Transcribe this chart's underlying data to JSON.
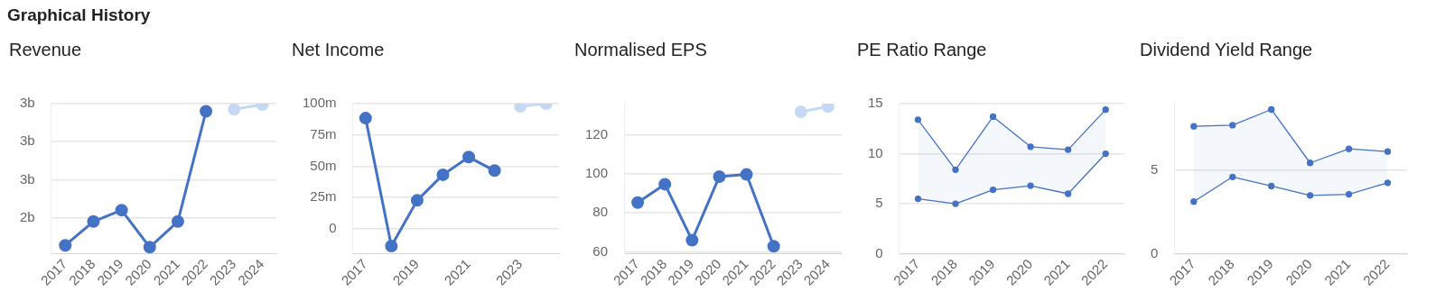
{
  "chart_data": [
    {
      "type": "other",
      "title": "Graphical History"
    },
    {
      "type": "line",
      "title": "Revenue",
      "categories": [
        "2017",
        "2018",
        "2019",
        "2020",
        "2021",
        "2022",
        "2023",
        "2024"
      ],
      "marker": "circle",
      "grid": "y",
      "series": [
        {
          "color": "#4472c4",
          "values": [
            1.91,
            2.16,
            2.28,
            1.89,
            2.16,
            3.32,
            null,
            null
          ]
        },
        {
          "color": "#c5d9f5",
          "values": [
            null,
            null,
            null,
            null,
            null,
            null,
            3.34,
            3.39
          ]
        }
      ],
      "ylim": [
        1.82,
        3.4
      ],
      "yticks": [
        {
          "value": 2.2,
          "label": "2b"
        },
        {
          "value": 2.6,
          "label": "3b"
        },
        {
          "value": 3.0,
          "label": "3b"
        },
        {
          "value": 3.4,
          "label": "3b"
        }
      ]
    },
    {
      "type": "line",
      "title": "Net Income",
      "categories": [
        "2017",
        null,
        "2019",
        null,
        "2021",
        null,
        "2023",
        null
      ],
      "marker": "circle",
      "grid": "y",
      "series": [
        {
          "color": "#4472c4",
          "values": [
            88.4,
            -13.8,
            22.7,
            43.2,
            57.3,
            46.5,
            null,
            null
          ]
        },
        {
          "color": "#c5d9f5",
          "values": [
            null,
            null,
            null,
            null,
            null,
            null,
            97.8,
            100
          ]
        }
      ],
      "ylim": [
        -20,
        100
      ],
      "yticks": [
        0,
        {
          "value": 25,
          "label": "25m"
        },
        {
          "value": 50,
          "label": "50m"
        },
        {
          "value": 75,
          "label": "75m"
        },
        {
          "value": 100,
          "label": "100m"
        }
      ]
    },
    {
      "type": "line",
      "title": "Normalised EPS",
      "categories": [
        "2017",
        "2018",
        "2019",
        "2020",
        "2021",
        "2022",
        "2023",
        "2024"
      ],
      "marker": "circle",
      "grid": "y",
      "series": [
        {
          "color": "#4472c4",
          "values": [
            85.3,
            94.7,
            66,
            98.6,
            99.7,
            62.9,
            null,
            null
          ]
        },
        {
          "color": "#c5d9f5",
          "values": [
            null,
            null,
            null,
            null,
            null,
            null,
            131.8,
            134.5
          ]
        }
      ],
      "ylim": [
        59,
        136
      ],
      "yticks": [
        60,
        80,
        100,
        120
      ]
    },
    {
      "type": "line",
      "title": "PE Ratio Range",
      "categories": [
        "2017",
        "2018",
        "2019",
        "2020",
        "2021",
        "2022"
      ],
      "marker": "circle",
      "grid": "y",
      "series": [
        {
          "type": "line",
          "color": "#4472c4",
          "values": [
            5.5,
            5.0,
            6.4,
            6.8,
            6.0,
            10.0
          ]
        },
        {
          "type": "area",
          "color": "#4472c4",
          "values": [
            13.4,
            8.4,
            13.7,
            10.7,
            10.4,
            14.4
          ]
        }
      ],
      "ylim": [
        0,
        15
      ],
      "yticks": [
        0,
        5,
        10,
        15
      ]
    },
    {
      "type": "line",
      "title": "Dividend Yield Range",
      "categories": [
        "2017",
        "2018",
        "2019",
        "2020",
        "2021",
        "2022"
      ],
      "marker": "circle",
      "grid": "y",
      "series": [
        {
          "type": "line",
          "color": "#4472c4",
          "values": [
            3.13,
            4.61,
            4.06,
            3.5,
            3.57,
            4.26
          ]
        },
        {
          "type": "area",
          "color": "#4472c4",
          "values": [
            7.64,
            7.71,
            8.65,
            5.45,
            6.29,
            6.13
          ]
        }
      ],
      "ylim": [
        0,
        9
      ],
      "yticks": [
        0,
        5
      ]
    }
  ]
}
